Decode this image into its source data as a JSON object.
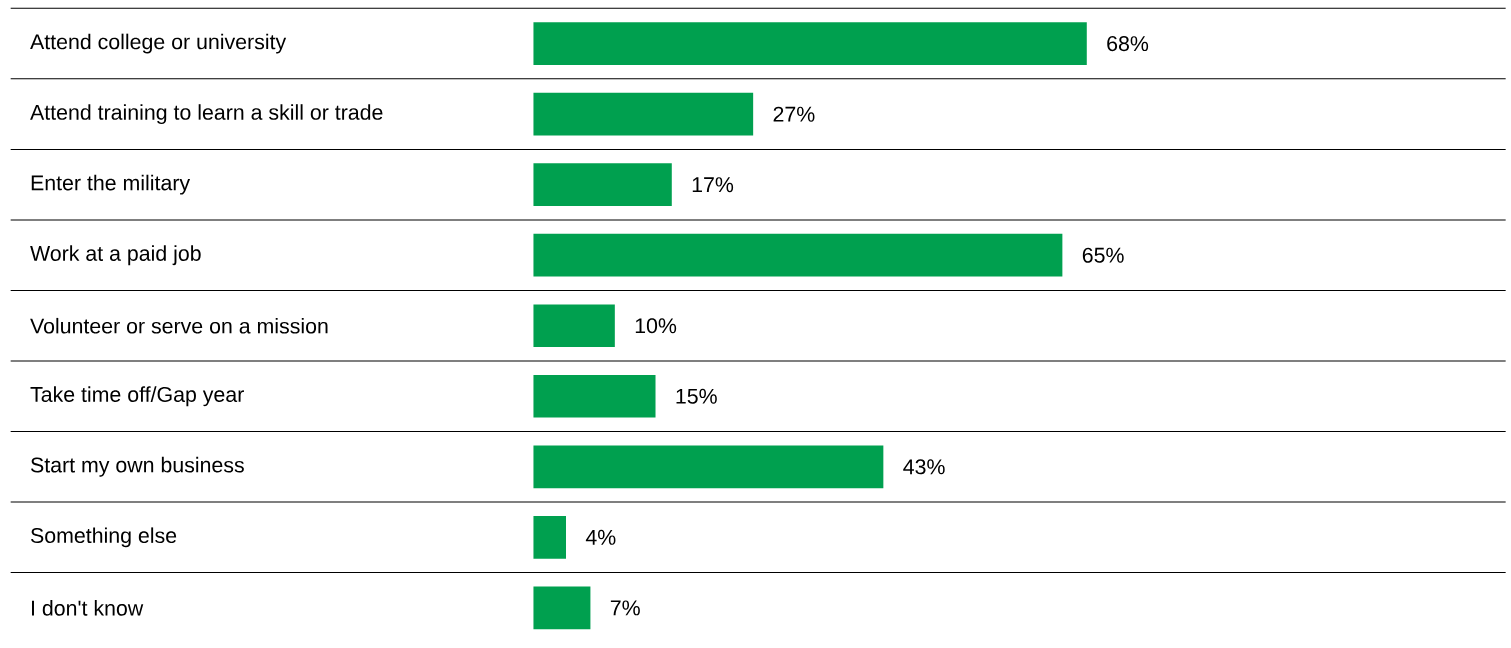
{
  "chart_data": {
    "type": "bar",
    "orientation": "horizontal",
    "categories": [
      "Attend college or university",
      "Attend training to learn a skill or trade",
      "Enter the military",
      "Work at a paid job",
      "Volunteer or serve on a mission",
      "Take time off/Gap year",
      "Start my own business",
      "Something else",
      "I don't know"
    ],
    "values": [
      68,
      27,
      17,
      65,
      10,
      15,
      43,
      4,
      7
    ],
    "value_labels": [
      "68%",
      "27%",
      "17%",
      "65%",
      "10%",
      "15%",
      "43%",
      "4%",
      "7%"
    ],
    "color": "#00a04f"
  }
}
